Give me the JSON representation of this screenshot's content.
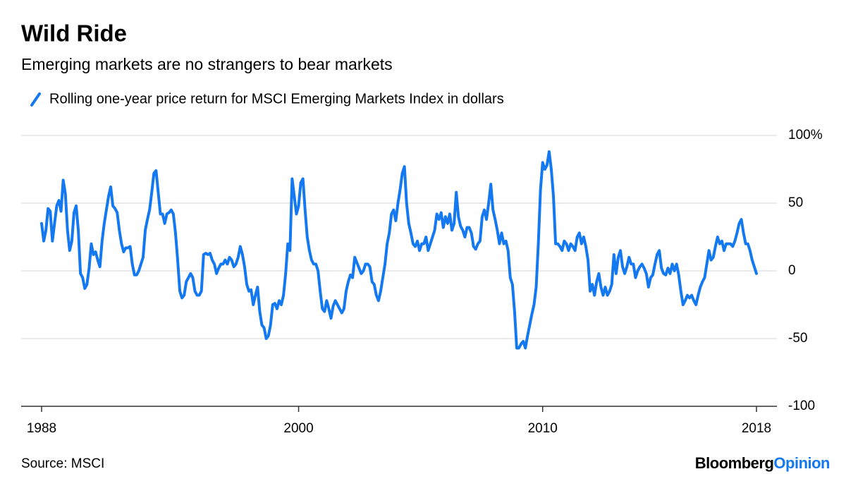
{
  "chart_data": {
    "type": "line",
    "title": "Wild Ride",
    "subtitle": "Emerging markets are no strangers to bear markets",
    "source": "Source: MSCI",
    "logo": [
      "Bloomberg",
      "Opinion"
    ],
    "ylim": [
      -100,
      100
    ],
    "yticks": [
      {
        "value": 100,
        "label": "100%"
      },
      50,
      0,
      -50,
      -100
    ],
    "grid": true,
    "categories": [
      "1988",
      null,
      null,
      null,
      null,
      null,
      null,
      null,
      null,
      null,
      null,
      null,
      null,
      null,
      null,
      null,
      null,
      null,
      null,
      null,
      null,
      null,
      null,
      null,
      null,
      null,
      null,
      null,
      null,
      null,
      null,
      null,
      null,
      null,
      null,
      null,
      null,
      null,
      null,
      null,
      null,
      null,
      null,
      null,
      null,
      null,
      null,
      null,
      null,
      null,
      null,
      null,
      null,
      null,
      null,
      null,
      null,
      null,
      null,
      null,
      null,
      null,
      null,
      null,
      null,
      null,
      null,
      null,
      null,
      null,
      null,
      null,
      null,
      null,
      null,
      null,
      null,
      null,
      null,
      null,
      null,
      null,
      null,
      null,
      null,
      null,
      null,
      null,
      null,
      null,
      null,
      null,
      null,
      null,
      null,
      null,
      null,
      null,
      null,
      null,
      null,
      null,
      null,
      null,
      null,
      null,
      null,
      null,
      null,
      null,
      null,
      null,
      null,
      null,
      null,
      null,
      null,
      null,
      null,
      "2000",
      null,
      null,
      null,
      null,
      null,
      null,
      null,
      null,
      null,
      null,
      null,
      null,
      null,
      null,
      null,
      null,
      null,
      null,
      null,
      null,
      null,
      null,
      null,
      null,
      null,
      null,
      null,
      null,
      null,
      null,
      null,
      null,
      null,
      null,
      null,
      null,
      null,
      null,
      null,
      null,
      null,
      null,
      null,
      null,
      null,
      null,
      null,
      null,
      null,
      null,
      null,
      null,
      null,
      null,
      null,
      null,
      null,
      null,
      null,
      null,
      null,
      null,
      null,
      null,
      null,
      null,
      null,
      null,
      null,
      null,
      null,
      null,
      null,
      null,
      null,
      null,
      null,
      null,
      null,
      null,
      null,
      null,
      null,
      null,
      null,
      null,
      null,
      null,
      null,
      null,
      null,
      null,
      null,
      null,
      null,
      null,
      null,
      null,
      null,
      null,
      null,
      null,
      null,
      null,
      null,
      null,
      null,
      null,
      null,
      null,
      null,
      null,
      "2010",
      null,
      null,
      null,
      null,
      null,
      null,
      null,
      null,
      null,
      null,
      null,
      null,
      null,
      null,
      null,
      null,
      null,
      null,
      null,
      null,
      null,
      null,
      null,
      null,
      null,
      null,
      null,
      null,
      null,
      null,
      null,
      null,
      null,
      null,
      null,
      null,
      null,
      null,
      null,
      null,
      null,
      null,
      null,
      null,
      null,
      null,
      null,
      null,
      null,
      null,
      null,
      null,
      null,
      null,
      null,
      null,
      null,
      null,
      null,
      null,
      null,
      null,
      null,
      null,
      null,
      null,
      null,
      null,
      null,
      null,
      null,
      null,
      null,
      null,
      null,
      null,
      null,
      null,
      null,
      null,
      null,
      null,
      null,
      null,
      null,
      null,
      null,
      null,
      null,
      null,
      null,
      null,
      null,
      null,
      null,
      null,
      null,
      null,
      "2018"
    ],
    "series": [
      {
        "name": "Rolling one-year price return for MSCI Emerging Markets Index in dollars",
        "color": "#1479f0",
        "values": [
          35,
          22,
          30,
          46,
          44,
          22,
          35,
          48,
          52,
          44,
          67,
          57,
          30,
          15,
          22,
          43,
          48,
          30,
          -2,
          -5,
          -13,
          -10,
          2,
          20,
          12,
          14,
          8,
          3,
          22,
          35,
          45,
          55,
          62,
          48,
          46,
          43,
          30,
          20,
          14,
          17,
          17,
          18,
          5,
          -3,
          -3,
          0,
          5,
          10,
          30,
          38,
          45,
          58,
          72,
          74,
          58,
          42,
          42,
          35,
          42,
          43,
          45,
          42,
          28,
          8,
          -15,
          -20,
          -18,
          -8,
          -5,
          -2,
          -5,
          -15,
          -18,
          -18,
          -15,
          12,
          13,
          12,
          13,
          8,
          5,
          -2,
          2,
          5,
          5,
          8,
          5,
          10,
          8,
          3,
          5,
          10,
          18,
          12,
          3,
          -10,
          -15,
          -14,
          -25,
          -18,
          -12,
          -30,
          -40,
          -42,
          -50,
          -48,
          -40,
          -25,
          -24,
          -28,
          -22,
          -25,
          -18,
          -2,
          20,
          15,
          68,
          55,
          42,
          48,
          65,
          68,
          45,
          25,
          15,
          8,
          5,
          5,
          0,
          -15,
          -28,
          -30,
          -22,
          -28,
          -35,
          -26,
          -22,
          -25,
          -28,
          -31,
          -28,
          -15,
          -8,
          -3,
          -5,
          10,
          6,
          2,
          -2,
          0,
          5,
          5,
          3,
          -8,
          -10,
          -18,
          -22,
          -15,
          -5,
          5,
          20,
          28,
          42,
          45,
          37,
          50,
          60,
          72,
          77,
          50,
          35,
          28,
          20,
          18,
          22,
          15,
          20,
          20,
          25,
          15,
          20,
          25,
          30,
          42,
          38,
          43,
          32,
          40,
          35,
          42,
          30,
          35,
          58,
          40,
          33,
          30,
          25,
          32,
          32,
          28,
          18,
          16,
          20,
          22,
          40,
          45,
          38,
          50,
          64,
          45,
          38,
          30,
          20,
          28,
          20,
          22,
          15,
          -5,
          -10,
          -30,
          -57,
          -57,
          -54,
          -52,
          -57,
          -48,
          -40,
          -32,
          -25,
          -12,
          20,
          60,
          80,
          75,
          78,
          88,
          75,
          55,
          20,
          20,
          18,
          15,
          22,
          20,
          15,
          20,
          18,
          15,
          25,
          28,
          20,
          25,
          18,
          8,
          -15,
          -10,
          -18,
          -8,
          -2,
          -12,
          -18,
          -12,
          -18,
          -15,
          -10,
          12,
          -2,
          10,
          15,
          3,
          -2,
          3,
          10,
          5,
          5,
          -5,
          0,
          3,
          5,
          2,
          -2,
          -12,
          -5,
          -3,
          5,
          12,
          15,
          2,
          -2,
          -3,
          2,
          -2,
          5,
          0,
          5,
          -3,
          -15,
          -25,
          -22,
          -18,
          -20,
          -18,
          -22,
          -25,
          -18,
          -12,
          -8,
          -5,
          5,
          15,
          8,
          10,
          18,
          25,
          20,
          22,
          15,
          20,
          20,
          20,
          18,
          22,
          28,
          35,
          38,
          28,
          20,
          20,
          15,
          8,
          3,
          -2
        ]
      }
    ]
  }
}
